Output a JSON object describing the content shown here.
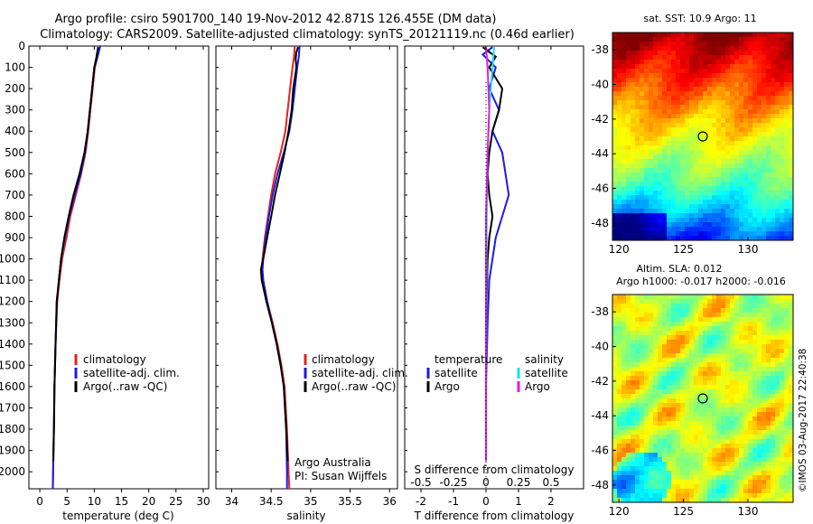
{
  "header": {
    "line1": "Argo profile: csiro 5901700_140 19-Nov-2012 42.871S 126.455E (DM data)",
    "line2": "Climatology: CARS2009. Satellite-adjusted climatology: synTS_20121119.nc (0.46d earlier)"
  },
  "colors": {
    "climatology": "#e8201c",
    "satellite": "#1a1ae6",
    "argo": "#000000",
    "sat_salinity": "#19e0e6",
    "argo_salinity": "#e619e0"
  },
  "chart_data": [
    {
      "type": "line",
      "id": "temperature",
      "xlabel": "temperature (deg C)",
      "ylabel": "",
      "xlim": [
        -2,
        31
      ],
      "ylim": [
        0,
        2080
      ],
      "y_inverted": true,
      "xticks": [
        "0",
        "5",
        "10",
        "15",
        "20",
        "25",
        "30"
      ],
      "yticks": [
        "0",
        "100",
        "200",
        "300",
        "400",
        "500",
        "600",
        "700",
        "800",
        "900",
        "1000",
        "1100",
        "1200",
        "1300",
        "1400",
        "1500",
        "1600",
        "1700",
        "1800",
        "1900",
        "2000"
      ],
      "legend": [
        "climatology",
        "satellite-adj. clim.",
        "Argo(..raw -QC)"
      ],
      "series": [
        {
          "name": "climatology",
          "color": "climatology",
          "x": [
            11.0,
            10.6,
            10.1,
            9.7,
            9.3,
            8.9,
            8.4,
            7.6,
            6.6,
            5.6,
            4.9,
            4.1,
            3.6,
            3.2,
            2.9,
            2.7,
            2.6,
            2.5,
            2.45,
            2.4
          ],
          "y": [
            0,
            50,
            100,
            200,
            300,
            400,
            500,
            600,
            700,
            800,
            900,
            1000,
            1100,
            1200,
            1400,
            1600,
            1800,
            1900,
            2000,
            2080
          ]
        },
        {
          "name": "satellite-adj. clim.",
          "color": "satellite",
          "x": [
            11.1,
            10.6,
            10.0,
            9.6,
            9.2,
            8.8,
            8.3,
            7.5,
            6.4,
            5.4,
            4.6,
            3.9,
            3.5,
            3.1,
            2.9,
            2.7,
            2.6,
            2.5,
            2.45,
            2.4
          ],
          "y": [
            0,
            50,
            100,
            200,
            300,
            400,
            500,
            600,
            700,
            800,
            900,
            1000,
            1100,
            1200,
            1400,
            1600,
            1800,
            1900,
            2000,
            2080
          ]
        },
        {
          "name": "Argo(..raw -QC)",
          "color": "argo",
          "x": [
            10.7,
            10.4,
            10.0,
            9.6,
            9.2,
            8.8,
            8.2,
            7.3,
            6.2,
            5.3,
            4.5,
            3.9,
            3.5,
            3.1,
            2.9,
            2.7,
            2.6,
            2.5
          ],
          "y": [
            5,
            50,
            100,
            200,
            300,
            400,
            500,
            600,
            700,
            800,
            900,
            1000,
            1100,
            1200,
            1400,
            1600,
            1800,
            1950
          ]
        }
      ]
    },
    {
      "type": "line",
      "id": "salinity",
      "xlabel": "salinity",
      "xlim": [
        33.8,
        36.1
      ],
      "ylim": [
        0,
        2080
      ],
      "y_inverted": true,
      "xticks": [
        "34",
        "34.5",
        "35",
        "35.5",
        "36"
      ],
      "legend": [
        "climatology",
        "satellite-adj. clim.",
        "Argo(..raw -QC)"
      ],
      "annotation": [
        "Argo Australia",
        "PI: Susan Wijffels"
      ],
      "series": [
        {
          "name": "climatology",
          "color": "climatology",
          "x": [
            34.8,
            34.79,
            34.77,
            34.74,
            34.71,
            34.68,
            34.62,
            34.55,
            34.5,
            34.46,
            34.42,
            34.39,
            34.38,
            34.4,
            34.45,
            34.52,
            34.58,
            34.63,
            34.67,
            34.7,
            34.72,
            34.73
          ],
          "y": [
            0,
            50,
            100,
            200,
            300,
            400,
            500,
            600,
            700,
            800,
            900,
            1000,
            1050,
            1100,
            1200,
            1300,
            1400,
            1500,
            1600,
            1800,
            2000,
            2080
          ]
        },
        {
          "name": "satellite-adj. clim.",
          "color": "satellite",
          "x": [
            34.86,
            34.85,
            34.83,
            34.8,
            34.77,
            34.73,
            34.66,
            34.58,
            34.52,
            34.47,
            34.43,
            34.4,
            34.39,
            34.4,
            34.45,
            34.51,
            34.57,
            34.62,
            34.66,
            34.69,
            34.7,
            34.7
          ],
          "y": [
            0,
            50,
            100,
            200,
            300,
            400,
            500,
            600,
            700,
            800,
            900,
            1000,
            1050,
            1100,
            1200,
            1300,
            1400,
            1500,
            1600,
            1800,
            2000,
            2080
          ]
        },
        {
          "name": "Argo(..raw -QC)",
          "color": "argo",
          "x": [
            34.84,
            34.82,
            34.81,
            34.82,
            34.8,
            34.78,
            34.76,
            34.72,
            34.67,
            34.61,
            34.55,
            34.5,
            34.45,
            34.4,
            34.37,
            34.38,
            34.44,
            34.51,
            34.57,
            34.62,
            34.66,
            34.69,
            34.71
          ],
          "y": [
            5,
            30,
            60,
            100,
            150,
            200,
            300,
            400,
            500,
            600,
            700,
            800,
            900,
            1000,
            1050,
            1100,
            1200,
            1300,
            1400,
            1500,
            1600,
            1800,
            1950
          ]
        }
      ]
    },
    {
      "type": "line",
      "id": "differences",
      "xlabel": "T difference from climatology",
      "xlabel2": "S difference from climatology",
      "xlim": [
        -2.5,
        3.0
      ],
      "ylim": [
        0,
        2080
      ],
      "y_inverted": true,
      "xticks": [
        "-2",
        "-1",
        "0",
        "1",
        "2"
      ],
      "xticks2": [
        "-0.5",
        "-0.25",
        "0",
        "0.25",
        "0.5"
      ],
      "legend_headers": [
        "temperature",
        "salinity"
      ],
      "legend": [
        "satellite",
        "Argo",
        "satellite",
        "Argo"
      ],
      "series": [
        {
          "name": "temperature satellite",
          "color": "satellite",
          "x": [
            0.2,
            -0.1,
            0.3,
            0.1,
            0.4,
            0.2,
            0.5,
            0.6,
            0.7,
            0.5,
            0.3,
            0.2,
            0.1,
            0.05,
            0.0,
            0.0
          ],
          "y": [
            5,
            40,
            100,
            200,
            300,
            400,
            500,
            600,
            700,
            800,
            900,
            1000,
            1100,
            1300,
            1600,
            1950
          ]
        },
        {
          "name": "temperature Argo",
          "color": "argo",
          "x": [
            -0.1,
            0.3,
            0.1,
            0.5,
            0.4,
            0.2,
            0.1,
            0.05,
            0.1,
            0.2,
            0.1,
            0.05,
            0.0,
            0.0
          ],
          "y": [
            5,
            50,
            100,
            200,
            300,
            400,
            500,
            600,
            700,
            800,
            900,
            1000,
            1300,
            1950
          ]
        },
        {
          "name": "salinity satellite",
          "color": "sat_salinity",
          "x": [
            0.25,
            0.2,
            0.15,
            0.1,
            0.05,
            0.03,
            0.02,
            0.01,
            0.0,
            0.0
          ],
          "y": [
            5,
            100,
            200,
            300,
            500,
            700,
            900,
            1200,
            1600,
            1950
          ]
        },
        {
          "name": "salinity Argo",
          "color": "argo_salinity",
          "x": [
            0.0,
            0.05,
            0.1,
            0.05,
            0.0,
            0.0,
            0.0
          ],
          "y": [
            5,
            100,
            300,
            500,
            800,
            1200,
            1950
          ]
        }
      ]
    },
    {
      "type": "heatmap",
      "id": "sat-sst",
      "title": "sat. SST: 10.9  Argo: 11",
      "xticks": [
        "120",
        "125",
        "130"
      ],
      "yticks": [
        "-38",
        "-40",
        "-42",
        "-44",
        "-46",
        "-48"
      ],
      "xlim": [
        119.5,
        133.5
      ],
      "ylim": [
        -49,
        -37
      ],
      "marker": {
        "lon": 126.455,
        "lat": -42.871
      }
    },
    {
      "type": "heatmap",
      "id": "altim-sla",
      "title": "Altim. SLA: 0.012",
      "subtitle": "Argo h1000: -0.017 h2000: -0.016",
      "xticks": [
        "120",
        "125",
        "130"
      ],
      "yticks": [
        "-38",
        "-40",
        "-42",
        "-44",
        "-46",
        "-48"
      ],
      "xlim": [
        119.5,
        133.5
      ],
      "ylim": [
        -49,
        -37
      ],
      "marker": {
        "lon": 126.455,
        "lat": -42.871
      }
    }
  ],
  "footer": {
    "credit": "©IMOS 03-Aug-2017 22:40:38"
  }
}
